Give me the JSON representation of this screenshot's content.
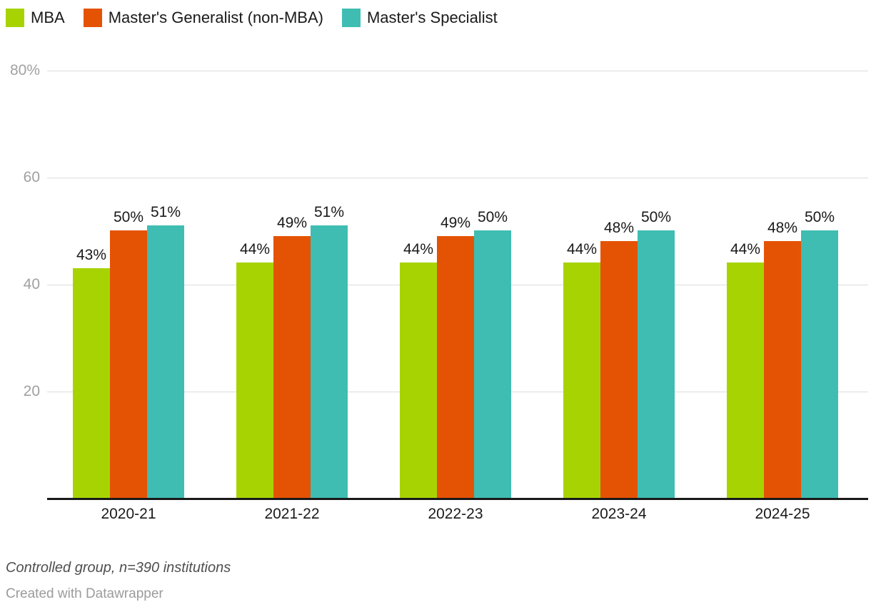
{
  "chart_data": {
    "type": "bar",
    "title": "",
    "categories": [
      "2020-21",
      "2021-22",
      "2022-23",
      "2023-24",
      "2024-25"
    ],
    "series": [
      {
        "name": "MBA",
        "color": "#a8d303",
        "values": [
          43,
          44,
          44,
          44,
          44
        ]
      },
      {
        "name": "Master's Generalist (non-MBA)",
        "color": "#e45304",
        "values": [
          50,
          49,
          49,
          48,
          48
        ]
      },
      {
        "name": "Master's Specialist",
        "color": "#3fbdb2",
        "values": [
          51,
          51,
          50,
          50,
          50
        ]
      }
    ],
    "value_suffix": "%",
    "xlabel": "",
    "ylabel": "",
    "ylim": [
      0,
      80
    ],
    "yticks": [
      {
        "value": 20,
        "label": "20"
      },
      {
        "value": 40,
        "label": "40"
      },
      {
        "value": 60,
        "label": "60"
      },
      {
        "value": 80,
        "label": "80%"
      }
    ],
    "grid": true,
    "legend_position": "top"
  },
  "colors": {
    "axis_text": "#a1a1a1",
    "gridline": "#dcdcdc",
    "baseline": "#191919",
    "label_text": "#1a1a1a",
    "note_text": "#4f4f4f",
    "credit_text": "#9b9b9b"
  },
  "footer": {
    "note": "Controlled group, n=390 institutions",
    "credit": "Created with Datawrapper"
  }
}
